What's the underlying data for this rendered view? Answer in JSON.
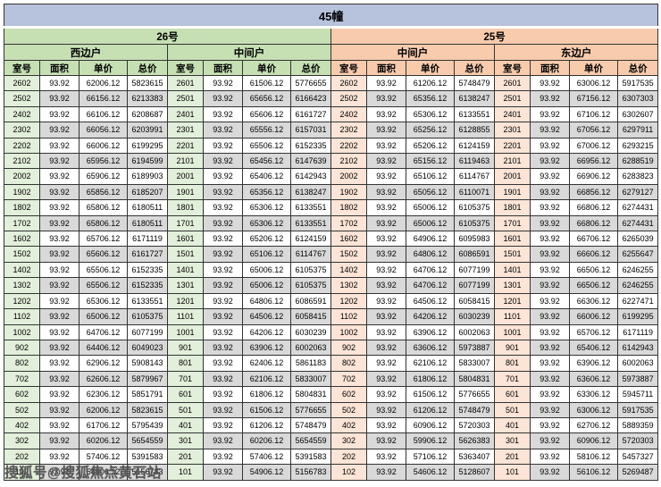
{
  "title": "45幢",
  "watermark": "搜狐号@搜狐焦点黄石站",
  "column_headers": [
    "室号",
    "面积",
    "单价",
    "总价"
  ],
  "buildings": [
    {
      "name": "26号",
      "units": [
        "西边户",
        "中间户"
      ]
    },
    {
      "name": "25号",
      "units": [
        "中间户",
        "东边户"
      ]
    }
  ],
  "colors": {
    "title_bg": "#b7c2dd",
    "building_26": "#c6e0b4",
    "building_26_room_tint": "#e2efda",
    "building_25": "#f8cbad",
    "building_25_room_tint": "#fce4d6",
    "alt_row": "#d9d9d9",
    "border": "#333333"
  },
  "groups": [
    {
      "building": "26号",
      "unit_type": "西边户",
      "rows": [
        [
          "2602",
          "93.92",
          "62006.12",
          "5823615"
        ],
        [
          "2502",
          "93.92",
          "66156.12",
          "6213383"
        ],
        [
          "2402",
          "93.92",
          "66106.12",
          "6208687"
        ],
        [
          "2302",
          "93.92",
          "66056.12",
          "6203991"
        ],
        [
          "2202",
          "93.92",
          "66006.12",
          "6199295"
        ],
        [
          "2102",
          "93.92",
          "65956.12",
          "6194599"
        ],
        [
          "2002",
          "93.92",
          "65906.12",
          "6189903"
        ],
        [
          "1902",
          "93.92",
          "65856.12",
          "6185207"
        ],
        [
          "1802",
          "93.92",
          "65806.12",
          "6180511"
        ],
        [
          "1702",
          "93.92",
          "65806.12",
          "6180511"
        ],
        [
          "1602",
          "93.92",
          "65706.12",
          "6171119"
        ],
        [
          "1502",
          "93.92",
          "65606.12",
          "6161727"
        ],
        [
          "1402",
          "93.92",
          "65506.12",
          "6152335"
        ],
        [
          "1302",
          "93.92",
          "65506.12",
          "6152335"
        ],
        [
          "1202",
          "93.92",
          "65306.12",
          "6133551"
        ],
        [
          "1102",
          "93.92",
          "65006.12",
          "6105375"
        ],
        [
          "1002",
          "93.92",
          "64706.12",
          "6077199"
        ],
        [
          "902",
          "93.92",
          "64406.12",
          "6049023"
        ],
        [
          "802",
          "93.92",
          "62906.12",
          "5908143"
        ],
        [
          "702",
          "93.92",
          "62606.12",
          "5879967"
        ],
        [
          "602",
          "93.92",
          "62306.12",
          "5851791"
        ],
        [
          "502",
          "93.92",
          "62006.12",
          "5823615"
        ],
        [
          "402",
          "93.92",
          "61706.12",
          "5795439"
        ],
        [
          "302",
          "93.92",
          "60206.12",
          "5654559"
        ],
        [
          "202",
          "93.92",
          "57406.12",
          "5391583"
        ],
        [
          "102",
          "93.92",
          "54906.12",
          "5156783"
        ]
      ]
    },
    {
      "building": "26号",
      "unit_type": "中间户",
      "rows": [
        [
          "2601",
          "93.92",
          "61506.12",
          "5776655"
        ],
        [
          "2501",
          "93.92",
          "65656.12",
          "6166423"
        ],
        [
          "2401",
          "93.92",
          "65606.12",
          "6161727"
        ],
        [
          "2301",
          "93.92",
          "65556.12",
          "6157031"
        ],
        [
          "2201",
          "93.92",
          "65506.12",
          "6152335"
        ],
        [
          "2101",
          "93.92",
          "65456.12",
          "6147639"
        ],
        [
          "2001",
          "93.92",
          "65406.12",
          "6142943"
        ],
        [
          "1901",
          "93.92",
          "65356.12",
          "6138247"
        ],
        [
          "1801",
          "93.92",
          "65306.12",
          "6133551"
        ],
        [
          "1701",
          "93.92",
          "65306.12",
          "6133551"
        ],
        [
          "1601",
          "93.92",
          "65206.12",
          "6124159"
        ],
        [
          "1501",
          "93.92",
          "65106.12",
          "6114767"
        ],
        [
          "1401",
          "93.92",
          "65006.12",
          "6105375"
        ],
        [
          "1301",
          "93.92",
          "65006.12",
          "6105375"
        ],
        [
          "1201",
          "93.92",
          "64806.12",
          "6086591"
        ],
        [
          "1101",
          "93.92",
          "64506.12",
          "6058415"
        ],
        [
          "1001",
          "93.92",
          "64206.12",
          "6030239"
        ],
        [
          "901",
          "93.92",
          "63906.12",
          "6002063"
        ],
        [
          "801",
          "93.92",
          "62406.12",
          "5861183"
        ],
        [
          "701",
          "93.92",
          "62106.12",
          "5833007"
        ],
        [
          "601",
          "93.92",
          "61806.12",
          "5804831"
        ],
        [
          "501",
          "93.92",
          "61506.12",
          "5776655"
        ],
        [
          "401",
          "93.92",
          "61206.12",
          "5748479"
        ],
        [
          "301",
          "93.92",
          "60206.12",
          "5654559"
        ],
        [
          "201",
          "93.92",
          "57406.12",
          "5391583"
        ],
        [
          "101",
          "93.92",
          "54906.12",
          "5156783"
        ]
      ]
    },
    {
      "building": "25号",
      "unit_type": "中间户",
      "rows": [
        [
          "2602",
          "93.92",
          "61206.12",
          "5748479"
        ],
        [
          "2502",
          "93.92",
          "65356.12",
          "6138247"
        ],
        [
          "2402",
          "93.92",
          "65306.12",
          "6133551"
        ],
        [
          "2302",
          "93.92",
          "65256.12",
          "6128855"
        ],
        [
          "2202",
          "93.92",
          "65206.12",
          "6124159"
        ],
        [
          "2102",
          "93.92",
          "65156.12",
          "6119463"
        ],
        [
          "2002",
          "93.92",
          "65106.12",
          "6114767"
        ],
        [
          "1902",
          "93.92",
          "65056.12",
          "6110071"
        ],
        [
          "1802",
          "93.92",
          "65006.12",
          "6105375"
        ],
        [
          "1702",
          "93.92",
          "65006.12",
          "6105375"
        ],
        [
          "1602",
          "93.92",
          "64906.12",
          "6095983"
        ],
        [
          "1502",
          "93.92",
          "64806.12",
          "6086591"
        ],
        [
          "1402",
          "93.92",
          "64706.12",
          "6077199"
        ],
        [
          "1302",
          "93.92",
          "64706.12",
          "6077199"
        ],
        [
          "1202",
          "93.92",
          "64506.12",
          "6058415"
        ],
        [
          "1102",
          "93.92",
          "64206.12",
          "6030239"
        ],
        [
          "1002",
          "93.92",
          "63906.12",
          "6002063"
        ],
        [
          "902",
          "93.92",
          "63606.12",
          "5973887"
        ],
        [
          "802",
          "93.92",
          "62106.12",
          "5833007"
        ],
        [
          "702",
          "93.92",
          "61806.12",
          "5804831"
        ],
        [
          "602",
          "93.92",
          "61506.12",
          "5776655"
        ],
        [
          "502",
          "93.92",
          "61206.12",
          "5748479"
        ],
        [
          "402",
          "93.92",
          "60906.12",
          "5720303"
        ],
        [
          "302",
          "93.92",
          "59906.12",
          "5626383"
        ],
        [
          "202",
          "93.92",
          "57106.12",
          "5363407"
        ],
        [
          "102",
          "93.92",
          "54606.12",
          "5128607"
        ]
      ]
    },
    {
      "building": "25号",
      "unit_type": "东边户",
      "rows": [
        [
          "2601",
          "93.92",
          "63006.12",
          "5917535"
        ],
        [
          "2501",
          "93.92",
          "67156.12",
          "6307303"
        ],
        [
          "2401",
          "93.92",
          "67106.12",
          "6302607"
        ],
        [
          "2301",
          "93.92",
          "67056.12",
          "6297911"
        ],
        [
          "2201",
          "93.92",
          "67006.12",
          "6293215"
        ],
        [
          "2101",
          "93.92",
          "66956.12",
          "6288519"
        ],
        [
          "2001",
          "93.92",
          "66906.12",
          "6283823"
        ],
        [
          "1901",
          "93.92",
          "66856.12",
          "6279127"
        ],
        [
          "1801",
          "93.92",
          "66806.12",
          "6274431"
        ],
        [
          "1701",
          "93.92",
          "66806.12",
          "6274431"
        ],
        [
          "1601",
          "93.92",
          "66706.12",
          "6265039"
        ],
        [
          "1501",
          "93.92",
          "66606.12",
          "6255647"
        ],
        [
          "1401",
          "93.92",
          "66506.12",
          "6246255"
        ],
        [
          "1301",
          "93.92",
          "66506.12",
          "6246255"
        ],
        [
          "1201",
          "93.92",
          "66306.12",
          "6227471"
        ],
        [
          "1101",
          "93.92",
          "66006.12",
          "6199295"
        ],
        [
          "1001",
          "93.92",
          "65706.12",
          "6171119"
        ],
        [
          "901",
          "93.92",
          "65406.12",
          "6142943"
        ],
        [
          "801",
          "93.92",
          "63906.12",
          "6002063"
        ],
        [
          "701",
          "93.92",
          "63606.12",
          "5973887"
        ],
        [
          "601",
          "93.92",
          "63306.12",
          "5945711"
        ],
        [
          "501",
          "93.92",
          "63006.12",
          "5917535"
        ],
        [
          "401",
          "93.92",
          "62706.12",
          "5889359"
        ],
        [
          "301",
          "93.92",
          "60906.12",
          "5720303"
        ],
        [
          "201",
          "93.92",
          "58106.12",
          "5457327"
        ],
        [
          "101",
          "93.92",
          "56106.12",
          "5269487"
        ]
      ]
    }
  ]
}
